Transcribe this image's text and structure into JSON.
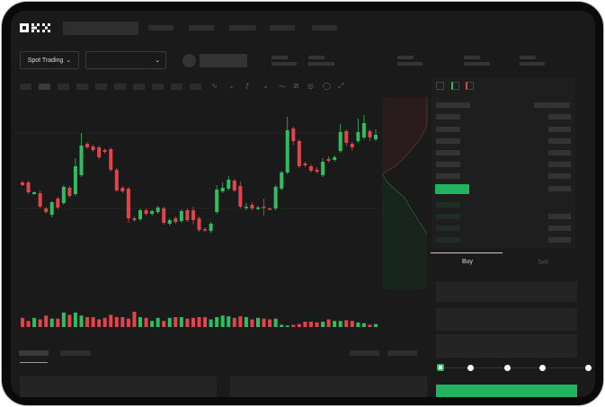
{
  "header": {
    "logo": "OKX"
  },
  "toolbar": {
    "market_type": "Spot Trading",
    "pair_dropdown_value": ""
  },
  "orderbook": {
    "mid_price_highlight_color": "#22b35e"
  },
  "trade": {
    "tabs": [
      "Buy",
      "Sell"
    ],
    "active_tab": "Buy",
    "slider_percent": 0,
    "buy_button_color": "#22b35e"
  },
  "colors": {
    "up": "#2ebd5f",
    "down": "#e0454d",
    "background": "#1a1a1a"
  },
  "chart_data": {
    "type": "candlestick",
    "candles": [
      [
        97,
        99,
        93,
        94
      ],
      [
        97,
        99,
        84,
        86
      ],
      [
        84,
        87,
        83,
        86
      ],
      [
        85,
        88,
        68,
        70
      ],
      [
        68,
        70,
        62,
        64
      ],
      [
        61,
        76,
        58,
        75
      ],
      [
        79,
        81,
        67,
        69
      ],
      [
        74,
        94,
        72,
        92
      ],
      [
        91,
        93,
        80,
        82
      ],
      [
        84,
        124,
        82,
        115
      ],
      [
        105,
        152,
        103,
        138
      ],
      [
        140,
        142,
        134,
        136
      ],
      [
        137,
        139,
        131,
        133
      ],
      [
        136,
        138,
        123,
        125
      ],
      [
        133,
        135,
        129,
        131
      ],
      [
        134,
        136,
        109,
        111
      ],
      [
        111,
        113,
        86,
        88
      ],
      [
        91,
        93,
        85,
        87
      ],
      [
        90,
        92,
        52,
        57
      ],
      [
        57,
        59,
        53,
        55
      ],
      [
        56,
        68,
        54,
        66
      ],
      [
        66,
        68,
        60,
        62
      ],
      [
        62,
        67,
        60,
        65
      ],
      [
        64,
        71,
        62,
        69
      ],
      [
        68,
        70,
        50,
        52
      ],
      [
        51,
        57,
        49,
        55
      ],
      [
        57,
        59,
        51,
        53
      ],
      [
        54,
        67,
        52,
        65
      ],
      [
        66,
        68,
        53,
        55
      ],
      [
        66,
        70,
        50,
        55
      ],
      [
        57,
        59,
        42,
        44
      ],
      [
        45,
        47,
        42,
        44
      ],
      [
        43,
        53,
        41,
        51
      ],
      [
        64,
        94,
        62,
        89
      ],
      [
        87,
        97,
        85,
        91
      ],
      [
        90,
        104,
        88,
        100
      ],
      [
        99,
        101,
        86,
        88
      ],
      [
        93,
        98,
        68,
        70
      ],
      [
        69,
        74,
        66,
        70
      ],
      [
        72,
        75,
        66,
        68
      ],
      [
        68,
        71,
        66,
        69
      ],
      [
        70,
        79,
        60,
        69
      ],
      [
        68,
        69,
        66,
        67
      ],
      [
        68,
        94,
        66,
        92
      ],
      [
        90,
        110,
        88,
        108
      ],
      [
        108,
        170,
        106,
        155
      ],
      [
        157,
        159,
        139,
        143
      ],
      [
        143,
        145,
        113,
        115
      ],
      [
        118,
        120,
        114,
        116
      ],
      [
        115,
        117,
        108,
        110
      ],
      [
        111,
        114,
        107,
        109
      ],
      [
        105,
        124,
        103,
        120
      ],
      [
        123,
        126,
        119,
        121
      ],
      [
        122,
        127,
        120,
        125
      ],
      [
        132,
        162,
        130,
        153
      ],
      [
        154,
        156,
        137,
        141
      ],
      [
        140,
        142,
        132,
        136
      ],
      [
        143,
        168,
        141,
        153
      ],
      [
        147,
        172,
        145,
        163
      ],
      [
        154,
        156,
        143,
        147
      ],
      [
        145,
        156,
        143,
        150
      ]
    ],
    "volume": [
      12,
      8,
      12,
      10,
      15,
      11,
      11,
      19,
      16,
      19,
      15,
      13,
      13,
      10,
      12,
      16,
      13,
      13,
      11,
      20,
      13,
      12,
      8,
      12,
      8,
      12,
      13,
      13,
      11,
      12,
      13,
      13,
      10,
      13,
      15,
      14,
      12,
      14,
      13,
      10,
      12,
      11,
      10,
      11,
      3,
      2,
      3,
      4,
      7,
      7,
      6,
      7,
      10,
      8,
      8,
      9,
      8,
      6,
      5,
      3,
      4
    ]
  }
}
